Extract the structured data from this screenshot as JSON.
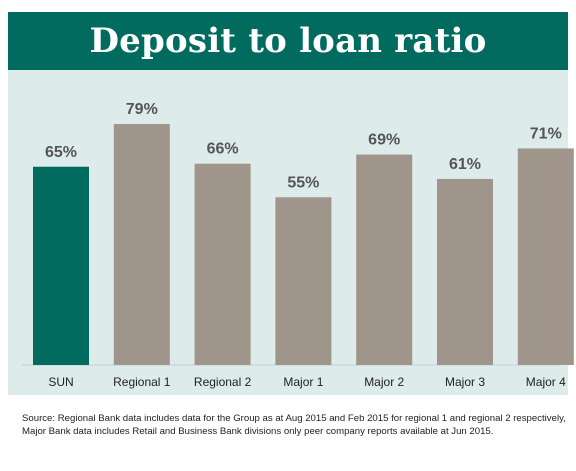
{
  "header": {
    "title": "Deposit to loan ratio"
  },
  "chart_data": {
    "type": "bar",
    "title": "Deposit to loan ratio",
    "categories": [
      "SUN",
      "Regional 1",
      "Regional 2",
      "Major 1",
      "Major 2",
      "Major 3",
      "Major 4"
    ],
    "values": [
      65,
      79,
      66,
      55,
      69,
      61,
      71
    ],
    "data_labels": [
      "65%",
      "79%",
      "66%",
      "55%",
      "69%",
      "61%",
      "71%"
    ],
    "unit": "%",
    "xlabel": "",
    "ylabel": "",
    "ylim": [
      0,
      100
    ],
    "grid": false,
    "legend": "none",
    "colors": {
      "highlight": "#006b5e",
      "bar": "#9f958b",
      "plot_background": "#ddebeb",
      "header_background": "#006b5e",
      "label_text": "#555555"
    }
  },
  "footnote": "Source: Regional Bank data includes data for the Group as at Aug 2015 and Feb 2015 for regional 1 and regional 2 respectively, Major Bank data includes Retail and Business Bank divisions only peer company reports available at Jun 2015."
}
